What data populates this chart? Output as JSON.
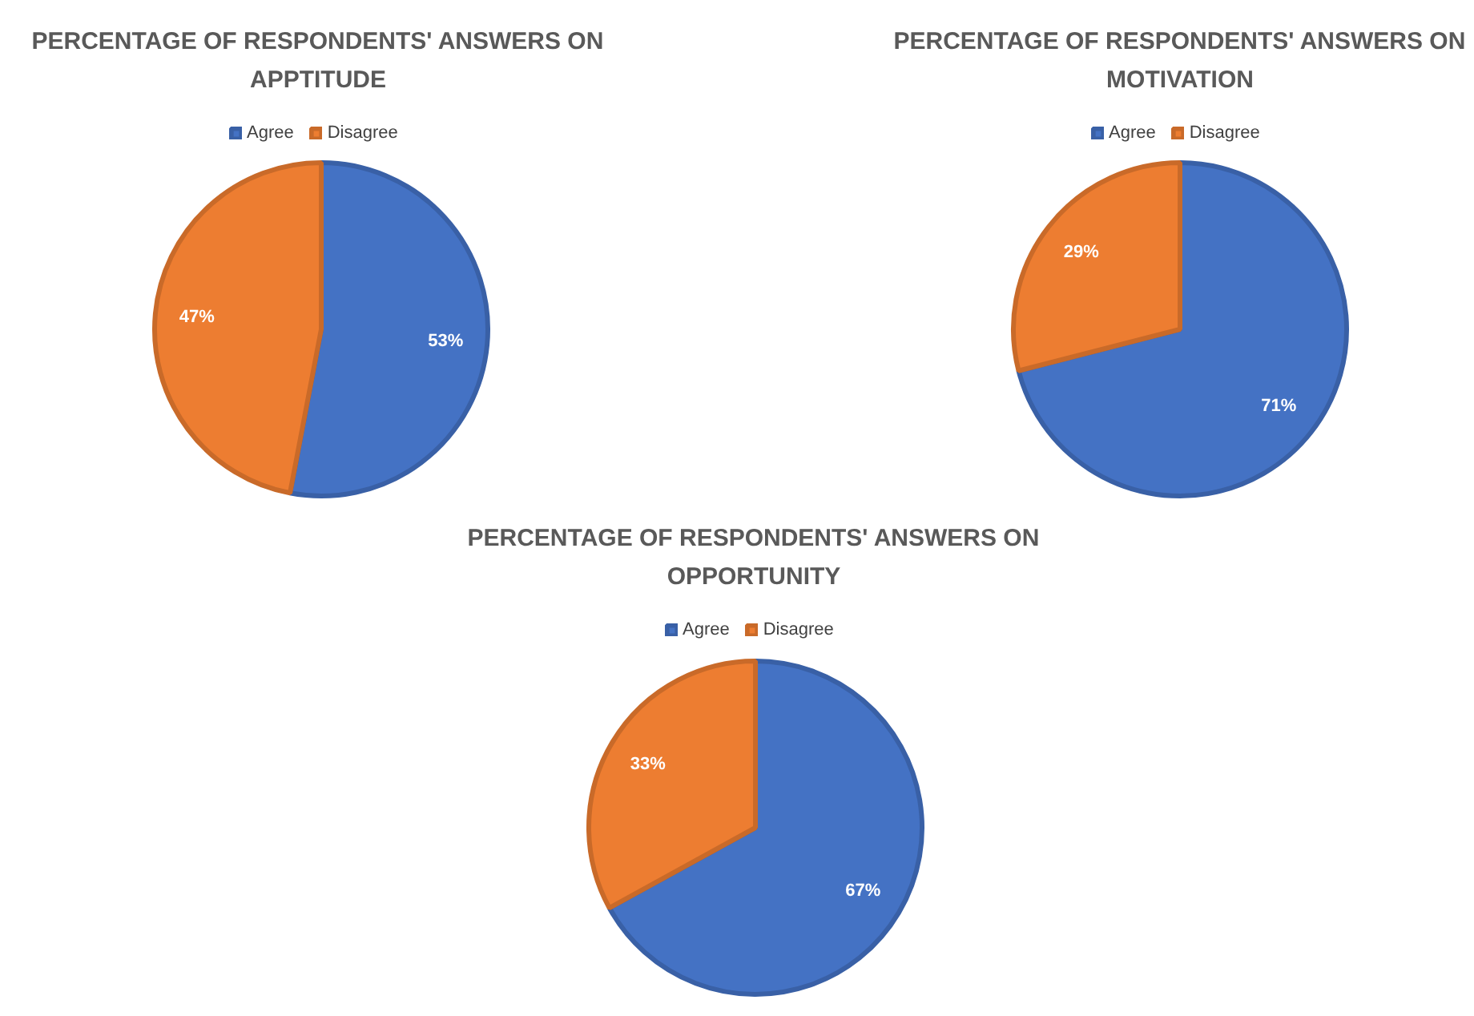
{
  "chart_data": [
    {
      "type": "pie",
      "title": "PERCENTAGE OF RESPONDENTS' ANSWERS ON APPTITUDE",
      "categories": [
        "Agree",
        "Disagree"
      ],
      "values": [
        53,
        47
      ],
      "colors": [
        "#4472c4",
        "#ed7d31"
      ],
      "value_labels": [
        "53%",
        "47%"
      ],
      "legend": "top"
    },
    {
      "type": "pie",
      "title": "PERCENTAGE OF RESPONDENTS' ANSWERS ON MOTIVATION",
      "categories": [
        "Agree",
        "Disagree"
      ],
      "values": [
        71,
        29
      ],
      "colors": [
        "#4472c4",
        "#ed7d31"
      ],
      "value_labels": [
        "71%",
        "29%"
      ],
      "legend": "top"
    },
    {
      "type": "pie",
      "title": "PERCENTAGE OF RESPONDENTS' ANSWERS ON OPPORTUNITY",
      "categories": [
        "Agree",
        "Disagree"
      ],
      "values": [
        67,
        33
      ],
      "colors": [
        "#4472c4",
        "#ed7d31"
      ],
      "value_labels": [
        "67%",
        "33%"
      ],
      "legend": "top"
    }
  ]
}
